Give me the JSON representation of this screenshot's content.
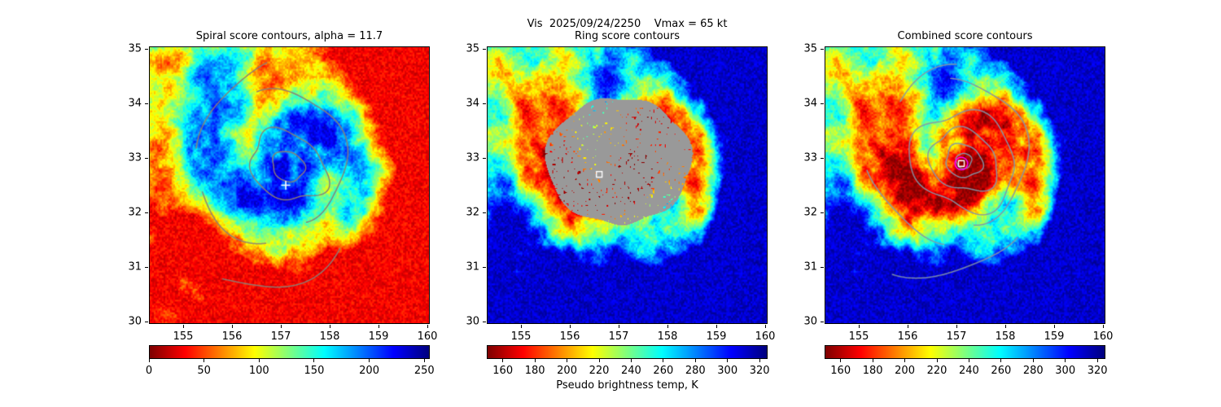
{
  "suptitle": "Vis  2025/09/24/2250    Vmax = 65 kt",
  "colors": {
    "background": "#ffffff",
    "axis": "#000000",
    "spiral_contour": "#8a7f76",
    "combined_contour": "#8496a8",
    "ring_mask_gray": "#999999",
    "marker_white": "#ffffff",
    "marker_magenta": "#ff00ff"
  },
  "chart_data": {
    "type": "heatmap",
    "description": "Three satellite maps of a tropical cyclone rendered with the reversed jet colormap: visible-channel image with spiral score contours, pseudo brightness temperature with ring score mask, and combined score contours. Each map shares lon 154.3-160.05 E, lat 29.95-35.05 N.",
    "axes": {
      "lon_range": [
        154.3,
        160.05
      ],
      "lat_range": [
        29.95,
        35.05
      ],
      "x_ticks": [
        155,
        156,
        157,
        158,
        159,
        160
      ],
      "y_ticks": [
        30,
        31,
        32,
        33,
        34,
        35
      ]
    },
    "panels": [
      {
        "title": "Spiral score contours, alpha = 11.7",
        "image": {
          "kind": "vis",
          "seed": 7,
          "center": [
            157.1,
            32.9
          ],
          "vmin": 0,
          "vmax": 255,
          "value_offset": 30,
          "value_gain": 200
        },
        "colorbar": {
          "vmin": 0,
          "vmax": 255,
          "ticks": [
            0,
            50,
            100,
            150,
            200,
            250
          ],
          "label": ""
        },
        "contours": {
          "color": "#8a7f76",
          "center": [
            157.15,
            32.85
          ],
          "ellipses": [
            {
              "rx": 0.34,
              "ry": 0.27,
              "rot": -20,
              "wobble": 0.06
            },
            {
              "rx": 0.82,
              "ry": 0.6,
              "rot": -25,
              "wobble": 0.09
            }
          ],
          "arcs": [
            {
              "a": 1.45,
              "b": 0.1,
              "th0": 115,
              "th1": -70,
              "wobble": 0.05
            },
            {
              "a": 1.85,
              "b": -0.05,
              "th0": 170,
              "th1": 103,
              "wobble": 0.04
            },
            {
              "a": 1.9,
              "b": -0.24,
              "th0": 195,
              "th1": 252,
              "wobble": 0.05
            },
            {
              "a": 2.6,
              "b": -0.3,
              "th0": 237,
              "th1": 305,
              "wobble": 0.05
            }
          ]
        },
        "markers": [
          {
            "type": "plus",
            "lon": 157.1,
            "lat": 32.5,
            "color": "#ffffff"
          }
        ]
      },
      {
        "title": "Ring score contours",
        "image": {
          "kind": "ir",
          "seed": 13,
          "center": [
            157.1,
            32.9
          ],
          "vmin": 150,
          "vmax": 325,
          "value_offset": 312,
          "value_gain": -158,
          "mask": {
            "center": [
              157.0,
              32.95
            ],
            "rlon": 1.5,
            "rlat": 1.16,
            "color": "#999999"
          }
        },
        "colorbar": {
          "vmin": 150,
          "vmax": 325,
          "ticks": [
            160,
            180,
            200,
            220,
            240,
            260,
            280,
            300,
            320
          ],
          "label": "Pseudo brightness temp, K"
        },
        "contours": null,
        "markers": [
          {
            "type": "square",
            "lon": 156.6,
            "lat": 32.7,
            "color": "#ffffff"
          }
        ]
      },
      {
        "title": "Combined score contours",
        "image": {
          "kind": "ir",
          "seed": 13,
          "center": [
            157.1,
            32.9
          ],
          "vmin": 150,
          "vmax": 325,
          "value_offset": 312,
          "value_gain": -158
        },
        "colorbar": {
          "vmin": 150,
          "vmax": 325,
          "ticks": [
            160,
            180,
            200,
            220,
            240,
            260,
            280,
            300,
            320
          ],
          "label": ""
        },
        "contours": {
          "color": "#8496a8",
          "center": [
            157.15,
            32.95
          ],
          "ellipses": [
            {
              "rx": 0.16,
              "ry": 0.14,
              "rot": 0,
              "wobble": 0.05
            },
            {
              "rx": 0.38,
              "ry": 0.3,
              "rot": -15,
              "wobble": 0.07
            },
            {
              "rx": 0.72,
              "ry": 0.55,
              "rot": -20,
              "wobble": 0.08
            },
            {
              "rx": 1.1,
              "ry": 0.88,
              "rot": -18,
              "wobble": 0.09
            }
          ],
          "arcs": [
            {
              "a": 1.5,
              "b": 0.08,
              "th0": 100,
              "th1": -80,
              "wobble": 0.05
            },
            {
              "a": 1.95,
              "b": -0.2,
              "th0": 185,
              "th1": 255,
              "wobble": 0.05
            },
            {
              "a": 2.45,
              "b": -0.27,
              "th0": 235,
              "th1": 308,
              "wobble": 0.05
            },
            {
              "a": 1.75,
              "b": 0.0,
              "th0": 140,
              "th1": 95,
              "wobble": 0.04
            }
          ]
        },
        "markers": [
          {
            "type": "square",
            "lon": 157.1,
            "lat": 32.9,
            "color": "#ffffff"
          },
          {
            "type": "circle",
            "lon": 157.1,
            "lat": 32.9,
            "radius": 0.13,
            "color": "#ff00ff"
          }
        ]
      }
    ]
  }
}
